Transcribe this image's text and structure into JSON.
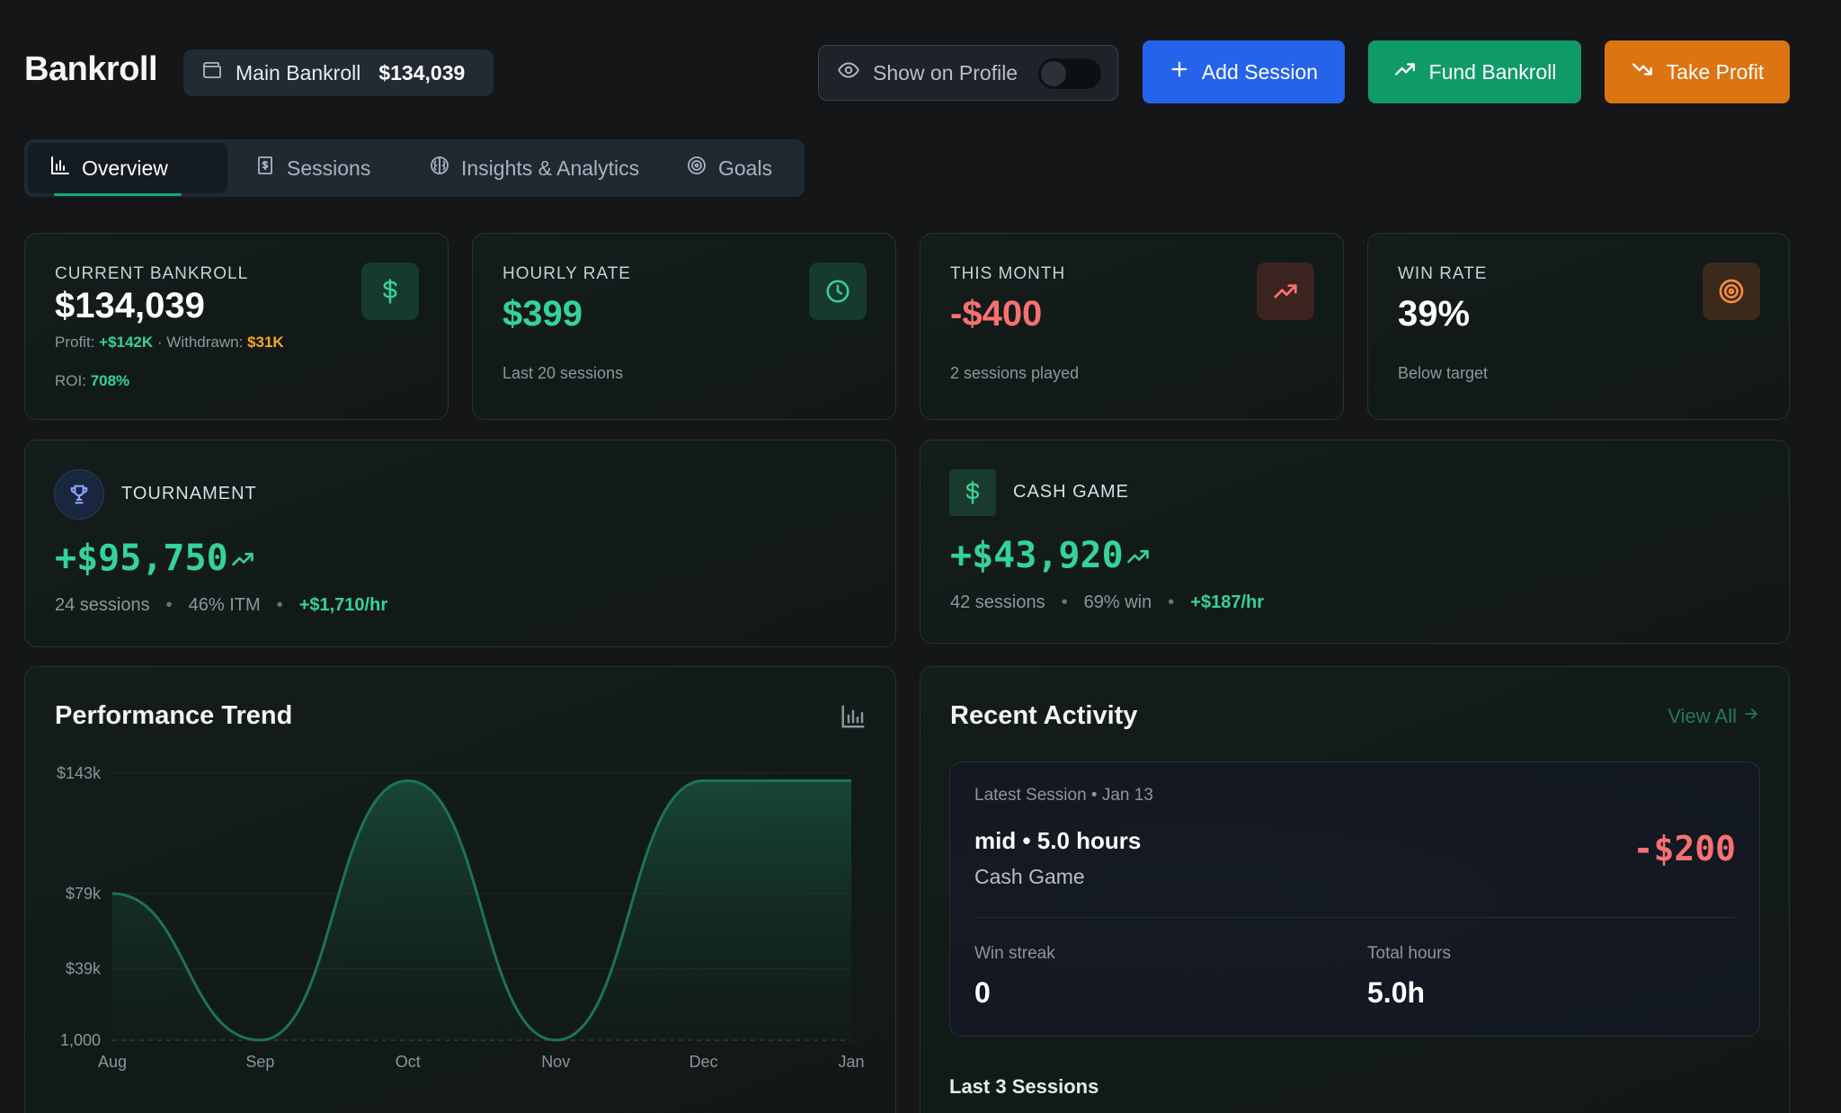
{
  "header": {
    "title": "Bankroll",
    "bankroll_name": "Main Bankroll",
    "bankroll_amount": "$134,039",
    "show_on_profile_label": "Show on Profile",
    "show_on_profile_enabled": false,
    "add_session_label": "Add Session",
    "fund_bankroll_label": "Fund Bankroll",
    "take_profit_label": "Take Profit"
  },
  "tabs": [
    {
      "label": "Overview",
      "active": true
    },
    {
      "label": "Sessions",
      "active": false
    },
    {
      "label": "Insights & Analytics",
      "active": false
    },
    {
      "label": "Goals",
      "active": false
    }
  ],
  "stats": {
    "current_bankroll": {
      "label": "CURRENT BANKROLL",
      "value": "$134,039",
      "profit_label": "Profit:",
      "profit_value": "+$142K",
      "withdrawn_label": "· Withdrawn:",
      "withdrawn_value": "$31K",
      "roi_label": "ROI:",
      "roi_value": "708%"
    },
    "hourly_rate": {
      "label": "HOURLY RATE",
      "value": "$399",
      "sub": "Last 20 sessions"
    },
    "this_month": {
      "label": "THIS MONTH",
      "value": "-$400",
      "sub": "2 sessions played"
    },
    "win_rate": {
      "label": "WIN RATE",
      "value": "39%",
      "sub": "Below target"
    }
  },
  "segments": {
    "tournament": {
      "label": "TOURNAMENT",
      "profit": "+$95,750",
      "sessions": "24 sessions",
      "metric": "46% ITM",
      "hourly": "+$1,710/hr"
    },
    "cash_game": {
      "label": "CASH GAME",
      "profit": "+$43,920",
      "sessions": "42 sessions",
      "metric": "69% win",
      "hourly": "+$187/hr"
    }
  },
  "performance": {
    "title": "Performance Trend"
  },
  "chart_data": {
    "type": "area",
    "title": "Performance Trend",
    "x": [
      "Aug",
      "Sep",
      "Oct",
      "Nov",
      "Dec",
      "Jan"
    ],
    "y_tick_labels": [
      "$143k",
      "$79k",
      "$39k",
      "1,000"
    ],
    "y_ticks": [
      143000,
      79000,
      39000,
      1000
    ],
    "series": [
      {
        "x": [
          0,
          1,
          2,
          3,
          4,
          4.3,
          5
        ],
        "values": [
          79000,
          1000,
          139000,
          1000,
          139000,
          139000,
          139000
        ]
      }
    ],
    "grid": true,
    "legend": "none"
  },
  "activity": {
    "title": "Recent Activity",
    "view_all": "View All",
    "latest_label": "Latest Session • Jan 13",
    "latest_title": "mid • 5.0 hours",
    "latest_type": "Cash Game",
    "latest_result": "-$200",
    "win_streak_label": "Win streak",
    "win_streak_value": "0",
    "total_hours_label": "Total hours",
    "total_hours_value": "5.0h",
    "last_sessions_title": "Last 3 Sessions"
  },
  "colors": {
    "accent_green": "#34d399",
    "accent_red": "#f87171",
    "add_session_blue": "#2563eb",
    "fund_green": "#0f9a68",
    "take_profit_orange": "#dc7412"
  }
}
